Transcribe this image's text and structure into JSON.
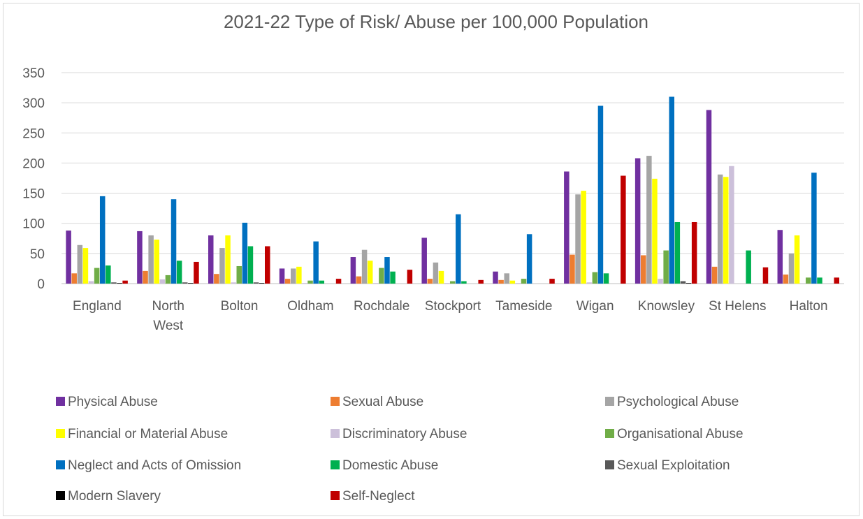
{
  "chart_data": {
    "type": "bar",
    "title": "2021-22 Type of Risk/ Abuse per 100,000 Population",
    "xlabel": "",
    "ylabel": "",
    "ylim": [
      0,
      350
    ],
    "yticks": [
      0,
      50,
      100,
      150,
      200,
      250,
      300,
      350
    ],
    "grid": true,
    "legend_position": "bottom",
    "categories": [
      [
        "England"
      ],
      [
        "North",
        "West"
      ],
      [
        "Bolton"
      ],
      [
        "Oldham"
      ],
      [
        "Rochdale"
      ],
      [
        "Stockport"
      ],
      [
        "Tameside"
      ],
      [
        "Wigan"
      ],
      [
        "Knowsley"
      ],
      [
        "St Helens"
      ],
      [
        "Halton"
      ]
    ],
    "series": [
      {
        "name": "Physical Abuse",
        "color": "#7030a0",
        "values": [
          88,
          87,
          80,
          25,
          44,
          76,
          20,
          186,
          208,
          288,
          89
        ]
      },
      {
        "name": "Sexual Abuse",
        "color": "#ed7d31",
        "values": [
          17,
          21,
          16,
          8,
          12,
          8,
          6,
          48,
          47,
          28,
          15
        ]
      },
      {
        "name": "Psychological Abuse",
        "color": "#a5a5a5",
        "values": [
          64,
          80,
          59,
          25,
          56,
          35,
          17,
          148,
          212,
          181,
          50
        ]
      },
      {
        "name": "Financial or Material Abuse",
        "color": "#ffff00",
        "values": [
          59,
          73,
          80,
          28,
          38,
          21,
          5,
          154,
          174,
          177,
          80
        ]
      },
      {
        "name": "Discriminatory Abuse",
        "color": "#ccc0da",
        "values": [
          4,
          7,
          2,
          1,
          1,
          1,
          1,
          2,
          8,
          195,
          0
        ]
      },
      {
        "name": "Organisational Abuse",
        "color": "#70ad47",
        "values": [
          26,
          14,
          29,
          5,
          26,
          4,
          8,
          19,
          55,
          0,
          10
        ]
      },
      {
        "name": "Neglect and Acts of Omission",
        "color": "#0070c0",
        "values": [
          145,
          140,
          101,
          70,
          44,
          115,
          82,
          295,
          310,
          0,
          184
        ]
      },
      {
        "name": "Domestic Abuse",
        "color": "#00b050",
        "values": [
          30,
          38,
          62,
          5,
          20,
          4,
          0,
          17,
          102,
          55,
          10
        ]
      },
      {
        "name": "Sexual Exploitation",
        "color": "#595959",
        "values": [
          2,
          2,
          2,
          0,
          0,
          0,
          0,
          0,
          4,
          0,
          0
        ]
      },
      {
        "name": "Modern Slavery",
        "color": "#000000",
        "values": [
          1,
          1,
          1,
          0,
          0,
          0,
          0,
          0,
          1,
          0,
          0
        ]
      },
      {
        "name": "Self-Neglect",
        "color": "#c00000",
        "values": [
          5,
          36,
          62,
          8,
          23,
          6,
          8,
          179,
          102,
          27,
          10
        ]
      }
    ]
  }
}
